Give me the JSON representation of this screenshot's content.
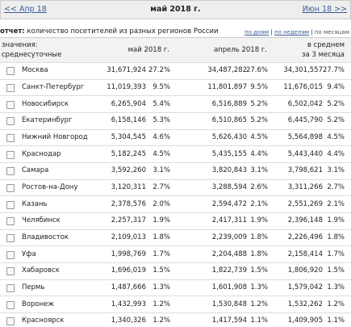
{
  "nav": {
    "prev": "<< Апр 18",
    "title": "май 2018 г.",
    "next": "Июн 18 >>"
  },
  "report": {
    "label": "отчет:",
    "text": "количество посетителей из разных регионов России",
    "links": [
      "по дням",
      "по неделям",
      "по месяцам"
    ],
    "separator": "|"
  },
  "table": {
    "header": {
      "values_label": "значения:",
      "values_kind": "среднесуточные",
      "col1": "май 2018 г.",
      "col2": "апрель 2018 г.",
      "col3_line1": "в среднем",
      "col3_line2": "за 3 месяца"
    },
    "rows": [
      [
        "Москва",
        "31,671,924",
        "27.2%",
        "34,487,282",
        "27.6%",
        "34,301,557",
        "27.7%"
      ],
      [
        "Санкт-Петербург",
        "11,019,393",
        "9.5%",
        "11,801,897",
        "9.5%",
        "11,676,015",
        "9.4%"
      ],
      [
        "Новосибирск",
        "6,265,904",
        "5.4%",
        "6,516,889",
        "5.2%",
        "6,502,042",
        "5.2%"
      ],
      [
        "Екатеринбург",
        "6,158,146",
        "5.3%",
        "6,510,865",
        "5.2%",
        "6,445,790",
        "5.2%"
      ],
      [
        "Нижний Новгород",
        "5,304,545",
        "4.6%",
        "5,626,430",
        "4.5%",
        "5,564,898",
        "4.5%"
      ],
      [
        "Краснодар",
        "5,182,245",
        "4.5%",
        "5,435,155",
        "4.4%",
        "5,443,440",
        "4.4%"
      ],
      [
        "Самара",
        "3,592,260",
        "3.1%",
        "3,820,843",
        "3.1%",
        "3,798,621",
        "3.1%"
      ],
      [
        "Ростов-на-Дону",
        "3,120,311",
        "2.7%",
        "3,288,594",
        "2.6%",
        "3,311,266",
        "2.7%"
      ],
      [
        "Казань",
        "2,378,576",
        "2.0%",
        "2,594,472",
        "2.1%",
        "2,551,269",
        "2.1%"
      ],
      [
        "Челябинск",
        "2,257,317",
        "1.9%",
        "2,417,311",
        "1.9%",
        "2,396,148",
        "1.9%"
      ],
      [
        "Владивосток",
        "2,109,013",
        "1.8%",
        "2,239,009",
        "1.8%",
        "2,226,496",
        "1.8%"
      ],
      [
        "Уфа",
        "1,998,769",
        "1.7%",
        "2,204,488",
        "1.8%",
        "2,158,414",
        "1.7%"
      ],
      [
        "Хабаровск",
        "1,696,019",
        "1.5%",
        "1,822,739",
        "1.5%",
        "1,806,920",
        "1.5%"
      ],
      [
        "Пермь",
        "1,487,666",
        "1.3%",
        "1,601,908",
        "1.3%",
        "1,579,042",
        "1.3%"
      ],
      [
        "Воронеж",
        "1,432,993",
        "1.2%",
        "1,530,848",
        "1.2%",
        "1,532,262",
        "1.2%"
      ],
      [
        "Красноярск",
        "1,340,326",
        "1.2%",
        "1,417,594",
        "1.1%",
        "1,409,905",
        "1.1%"
      ]
    ]
  }
}
